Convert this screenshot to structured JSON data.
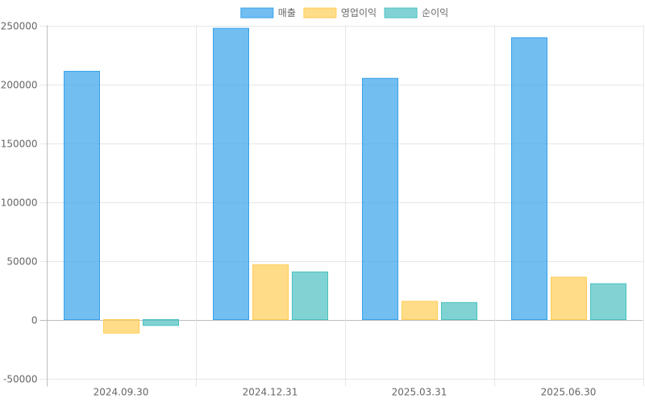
{
  "chart_data": {
    "type": "bar",
    "categories": [
      "2024.09.30",
      "2024.12.31",
      "2025.03.31",
      "2025.06.30"
    ],
    "series": [
      {
        "name": "매출",
        "values": [
          211000,
          247500,
          205000,
          239500
        ],
        "fill": "#36A2EB",
        "stroke": "#36A2EB"
      },
      {
        "name": "영업이익",
        "values": [
          -11500,
          46500,
          15500,
          36000
        ],
        "fill": "#FFCD56",
        "stroke": "#FFCD56"
      },
      {
        "name": "순이익",
        "values": [
          -5000,
          40500,
          14500,
          30500
        ],
        "fill": "#4BC0C0",
        "stroke": "#4BC0C0"
      }
    ],
    "ylim": [
      -50000,
      250000
    ],
    "yticks": [
      -50000,
      0,
      50000,
      100000,
      150000,
      200000,
      250000
    ],
    "legend_position": "top",
    "grid": true
  }
}
